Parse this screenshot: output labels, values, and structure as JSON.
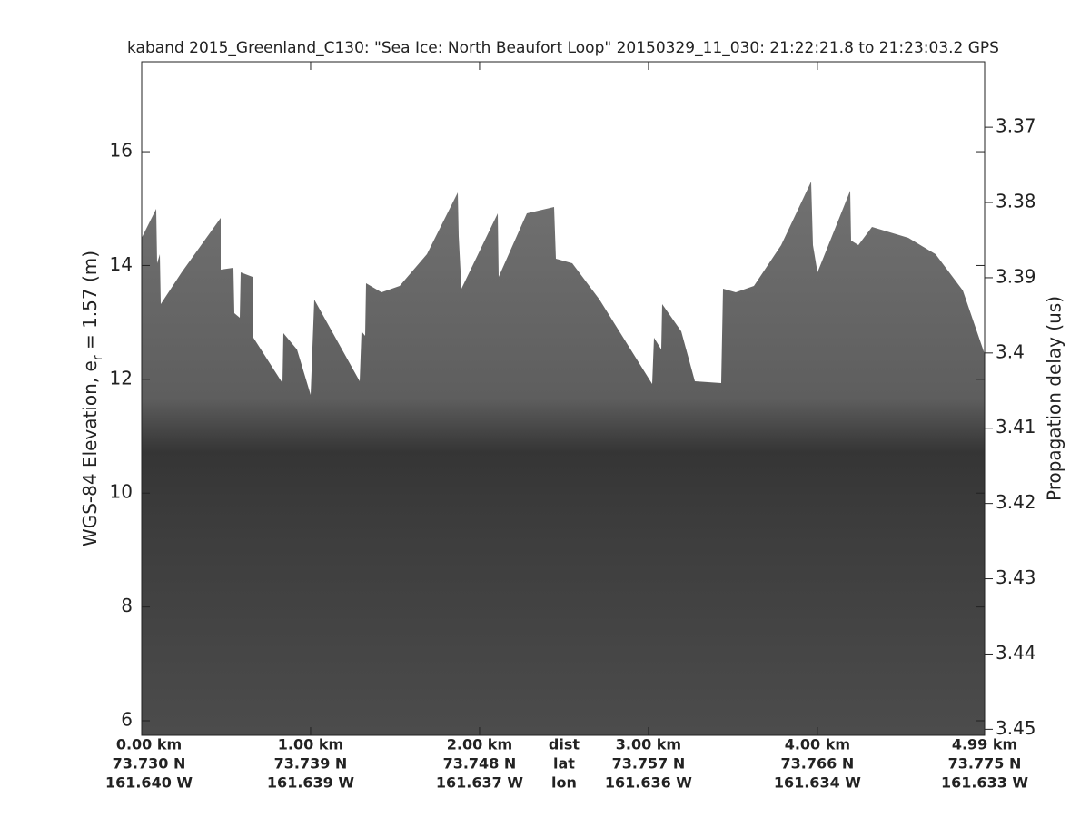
{
  "chart_data": {
    "type": "echogram",
    "title": "kaband 2015_Greenland_C130: \"Sea Ice: North Beaufort Loop\"  20150329_11_030: 21:22:21.8 to 21:23:03.2 GPS",
    "y_label_parts": [
      "WGS-84 Elevation, e",
      "r",
      " = 1.57 (m)"
    ],
    "y2_label": "Propagation delay (us)",
    "xlim": [
      0,
      4.99
    ],
    "xticks": [
      {
        "value": 0,
        "label": "0.00 km"
      },
      {
        "value": 1,
        "label": "1.00 km"
      },
      {
        "value": 2,
        "label": "2.00 km"
      },
      {
        "value": 3,
        "label": "3.00 km"
      },
      {
        "value": 4,
        "label": "4.00 km"
      },
      {
        "value": 4.99,
        "label": "4.99 km"
      }
    ],
    "x_lat_labels": [
      "73.730 N",
      "73.739 N",
      "73.748 N",
      "73.757 N",
      "73.766 N",
      "73.775 N"
    ],
    "x_lon_labels": [
      "161.640 W",
      "161.639 W",
      "161.637 W",
      "161.636 W",
      "161.634 W",
      "161.633 W"
    ],
    "x_row_names": [
      "dist",
      "lat",
      "lon"
    ],
    "ylim": [
      5.745,
      17.58
    ],
    "yticks": [
      6,
      8,
      10,
      12,
      14,
      16
    ],
    "y2lim": [
      3.4508,
      3.3613
    ],
    "y2ticks": [
      3.37,
      3.38,
      3.39,
      3.4,
      3.41,
      3.42,
      3.43,
      3.44,
      3.45
    ]
  }
}
